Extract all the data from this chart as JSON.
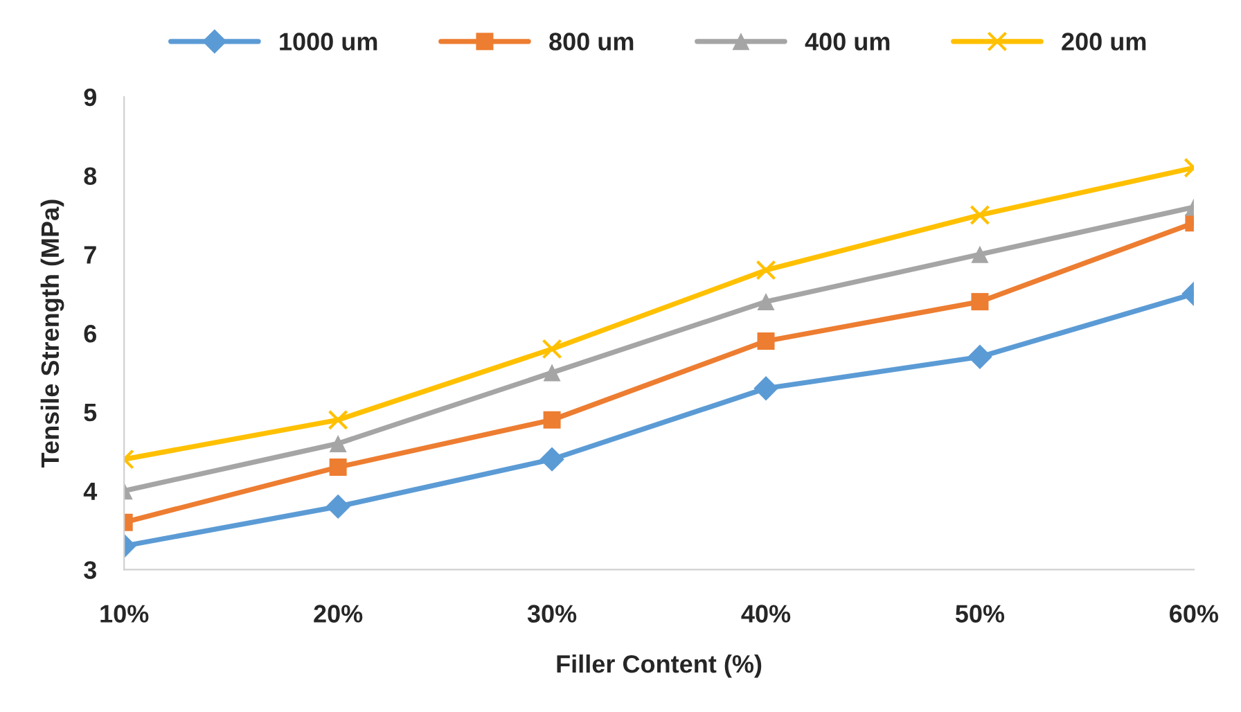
{
  "chart_data": {
    "type": "line",
    "xlabel": "Filler Content (%)",
    "ylabel": "Tensile Strength (MPa)",
    "categories": [
      "10%",
      "20%",
      "30%",
      "40%",
      "50%",
      "60%"
    ],
    "series": [
      {
        "name": "1000 um",
        "color": "#5b9bd5",
        "marker": "diamond",
        "values": [
          3.3,
          3.8,
          4.4,
          5.3,
          5.7,
          6.5
        ]
      },
      {
        "name": "800 um",
        "color": "#ed7d31",
        "marker": "square",
        "values": [
          3.6,
          4.3,
          4.9,
          5.9,
          6.4,
          7.4
        ]
      },
      {
        "name": "400 um",
        "color": "#a5a5a5",
        "marker": "triangle",
        "values": [
          4.0,
          4.6,
          5.5,
          6.4,
          7.0,
          7.6
        ]
      },
      {
        "name": "200 um",
        "color": "#ffc000",
        "marker": "cross",
        "values": [
          4.4,
          4.9,
          5.8,
          6.8,
          7.5,
          8.1
        ]
      }
    ],
    "ylim": [
      3,
      9
    ],
    "yticks": [
      3,
      4,
      5,
      6,
      7,
      8,
      9
    ],
    "grid": false,
    "legend": "top",
    "line_style": "solid"
  }
}
